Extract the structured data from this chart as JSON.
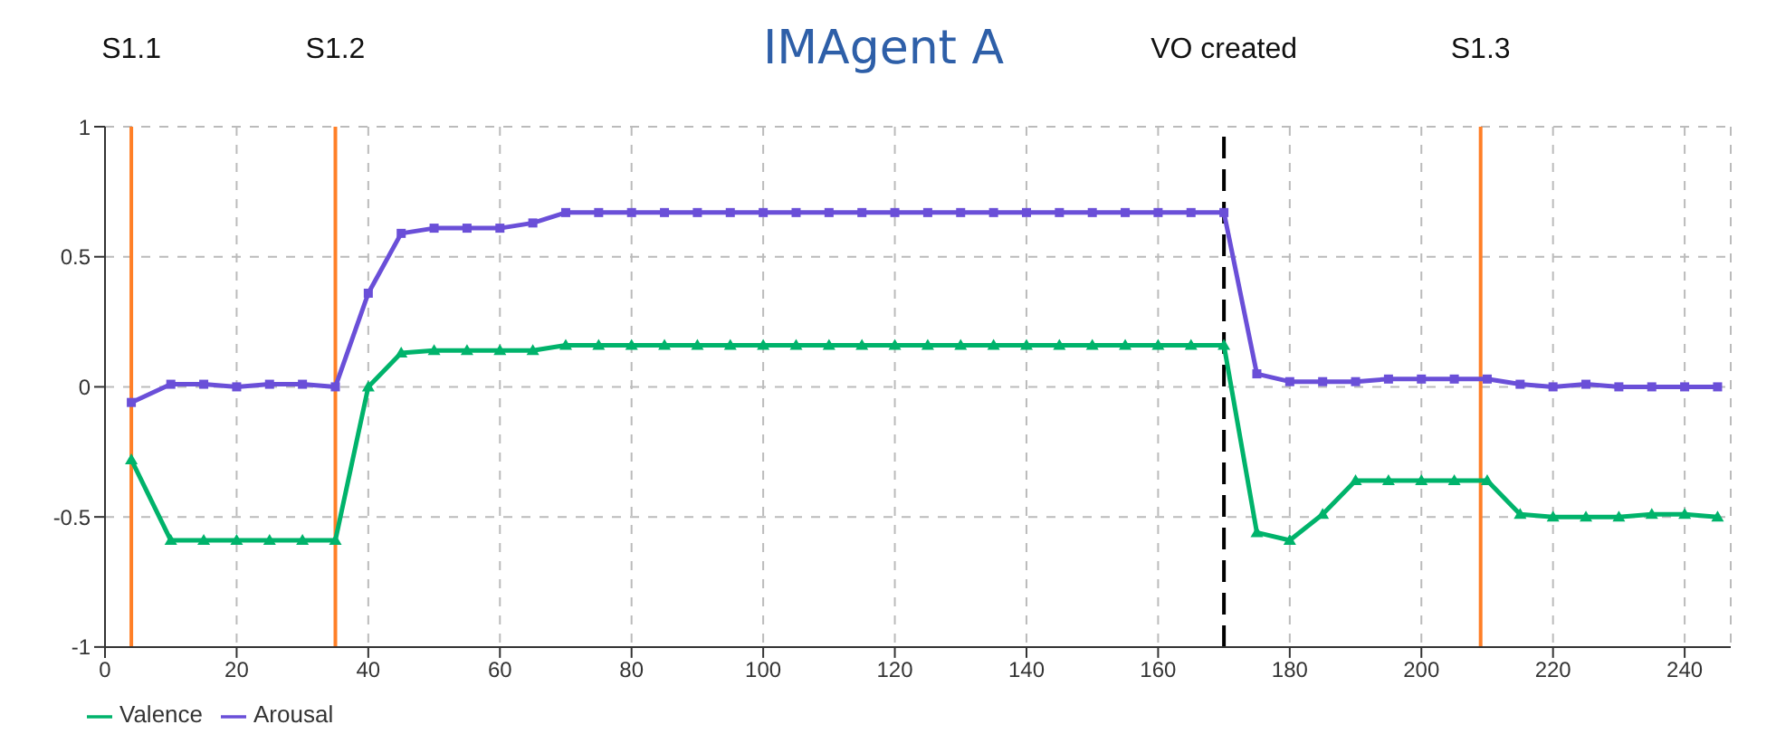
{
  "chart_data": {
    "type": "line",
    "title": "IMAgent A",
    "x": [
      4,
      10,
      15,
      20,
      25,
      30,
      35,
      40,
      45,
      50,
      55,
      60,
      65,
      70,
      75,
      80,
      85,
      90,
      95,
      100,
      105,
      110,
      115,
      120,
      125,
      130,
      135,
      140,
      145,
      150,
      155,
      160,
      165,
      170,
      175,
      180,
      185,
      190,
      195,
      200,
      205,
      210,
      215,
      220,
      225,
      230,
      235,
      240,
      245
    ],
    "series": [
      {
        "name": "Valence",
        "color": "#00b36b",
        "marker": "triangle",
        "values": [
          -0.28,
          -0.59,
          -0.59,
          -0.59,
          -0.59,
          -0.59,
          -0.59,
          0,
          0.13,
          0.14,
          0.14,
          0.14,
          0.14,
          0.16,
          0.16,
          0.16,
          0.16,
          0.16,
          0.16,
          0.16,
          0.16,
          0.16,
          0.16,
          0.16,
          0.16,
          0.16,
          0.16,
          0.16,
          0.16,
          0.16,
          0.16,
          0.16,
          0.16,
          0.16,
          -0.56,
          -0.59,
          -0.49,
          -0.36,
          -0.36,
          -0.36,
          -0.36,
          -0.36,
          -0.49,
          -0.5,
          -0.5,
          -0.5,
          -0.49,
          -0.49,
          -0.5
        ]
      },
      {
        "name": "Arousal",
        "color": "#6a4fd8",
        "marker": "square",
        "values": [
          -0.06,
          0.01,
          0.01,
          0,
          0.01,
          0.01,
          0,
          0.36,
          0.59,
          0.61,
          0.61,
          0.61,
          0.63,
          0.67,
          0.67,
          0.67,
          0.67,
          0.67,
          0.67,
          0.67,
          0.67,
          0.67,
          0.67,
          0.67,
          0.67,
          0.67,
          0.67,
          0.67,
          0.67,
          0.67,
          0.67,
          0.67,
          0.67,
          0.67,
          0.05,
          0.02,
          0.02,
          0.02,
          0.03,
          0.03,
          0.03,
          0.03,
          0.01,
          0,
          0.01,
          0,
          0,
          0,
          0
        ]
      }
    ],
    "xlim": [
      0,
      247
    ],
    "xticks": [
      0,
      20,
      40,
      60,
      80,
      100,
      120,
      140,
      160,
      180,
      200,
      220,
      240
    ],
    "ylim": [
      -1,
      1
    ],
    "yticks": [
      -1,
      -0.5,
      0,
      0.5,
      1
    ],
    "ref_lines": [
      {
        "axis": "x",
        "value": 4,
        "label": "S1.1",
        "color": "#ff7f27",
        "line_style": "solid"
      },
      {
        "axis": "x",
        "value": 35,
        "label": "S1.2",
        "color": "#ff7f27",
        "line_style": "solid"
      },
      {
        "axis": "x",
        "value": 170,
        "label": "VO created",
        "color": "#000000",
        "line_style": "dashed"
      },
      {
        "axis": "x",
        "value": 209,
        "label": "S1.3",
        "color": "#ff7f27",
        "line_style": "solid"
      }
    ],
    "grid": true,
    "legend": "bottom left"
  }
}
